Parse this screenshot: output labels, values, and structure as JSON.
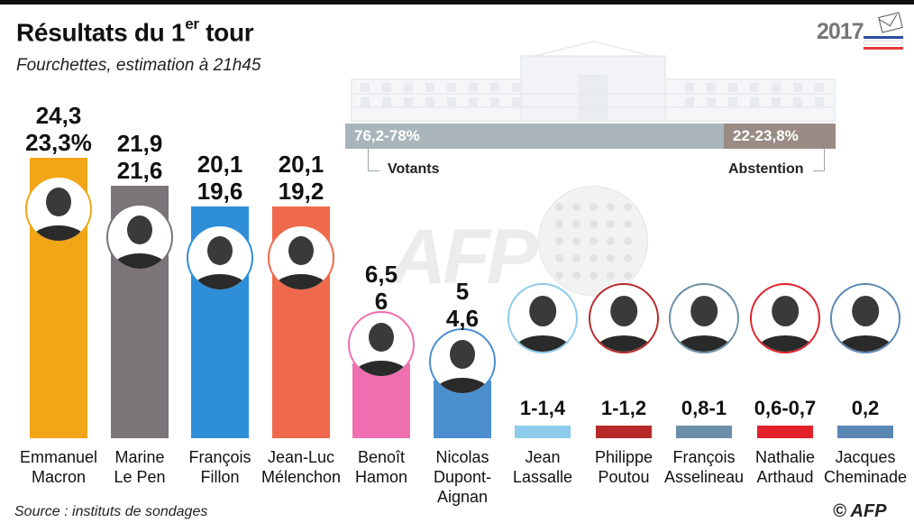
{
  "header": {
    "title_main": "Résultats du 1",
    "title_sup": "er",
    "title_end": " tour",
    "subtitle": "Fourchettes, estimation à 21h45",
    "year": "2017",
    "year_colors": [
      "#2b4fa0",
      "#ffffff",
      "#e23b3b"
    ]
  },
  "turnout": {
    "votants_value": "76,2-78%",
    "votants_label": "Votants",
    "abstention_value": "22-23,8%",
    "abstention_label": "Abstention",
    "votants_color": "#a9b4bb",
    "abstention_color": "#9a8b85",
    "votants_share": 0.772
  },
  "watermark": "AFP",
  "footer": {
    "source": "Source : instituts de sondages",
    "credit": "© AFP"
  },
  "chart_data": {
    "type": "bar",
    "title": "Résultats du 1er tour",
    "subtitle": "Fourchettes, estimation à 21h45",
    "categories": [
      "Emmanuel Macron",
      "Marine Le Pen",
      "François Fillon",
      "Jean-Luc Mélenchon",
      "Benoît Hamon",
      "Nicolas Dupont-Aignan",
      "Jean Lassalle",
      "Philippe Poutou",
      "François Asselineau",
      "Nathalie Arthaud",
      "Jacques Cheminade"
    ],
    "series": [
      {
        "values": [
          24.3,
          21.9,
          20.1,
          20.1,
          6.5,
          5,
          1.4,
          1.2,
          1,
          0.7,
          0.2
        ]
      },
      {
        "values": [
          23.3,
          21.6,
          19.6,
          19.2,
          6,
          4.6,
          1,
          1,
          0.8,
          0.6,
          0.2
        ]
      }
    ],
    "ylim": [
      0,
      24.3
    ],
    "grid": false,
    "candidates": [
      {
        "name_line1": "Emmanuel",
        "name_line2": "Macron",
        "name_line3": "",
        "label_top": "24,3",
        "label_bottom": "23,3%",
        "color": "#f2a516"
      },
      {
        "name_line1": "Marine",
        "name_line2": "Le Pen",
        "name_line3": "",
        "label_top": "21,9",
        "label_bottom": "21,6",
        "color": "#7b7478"
      },
      {
        "name_line1": "François",
        "name_line2": "Fillon",
        "name_line3": "",
        "label_top": "20,1",
        "label_bottom": "19,6",
        "color": "#2e8fd8"
      },
      {
        "name_line1": "Jean-Luc",
        "name_line2": "Mélenchon",
        "name_line3": "",
        "label_top": "20,1",
        "label_bottom": "19,2",
        "color": "#ef6a4c"
      },
      {
        "name_line1": "Benoît",
        "name_line2": "Hamon",
        "name_line3": "",
        "label_top": "6,5",
        "label_bottom": "6",
        "color": "#f06fb0"
      },
      {
        "name_line1": "Nicolas",
        "name_line2": "Dupont-",
        "name_line3": "Aignan",
        "label_top": "5",
        "label_bottom": "4,6",
        "color": "#4b8fcf"
      },
      {
        "name_line1": "Jean",
        "name_line2": "Lassalle",
        "name_line3": "",
        "label_top": "1-1,4",
        "label_bottom": "",
        "color": "#8ccbea"
      },
      {
        "name_line1": "Philippe",
        "name_line2": "Poutou",
        "name_line3": "",
        "label_top": "1-1,2",
        "label_bottom": "",
        "color": "#b72a2a"
      },
      {
        "name_line1": "François",
        "name_line2": "Asselineau",
        "name_line3": "",
        "label_top": "0,8-1",
        "label_bottom": "",
        "color": "#6b8fa6"
      },
      {
        "name_line1": "Nathalie",
        "name_line2": "Arthaud",
        "name_line3": "",
        "label_top": "0,6-0,7",
        "label_bottom": "",
        "color": "#e2212a"
      },
      {
        "name_line1": "Jacques",
        "name_line2": "Cheminade",
        "name_line3": "",
        "label_top": "0,2",
        "label_bottom": "",
        "color": "#5a87b3"
      }
    ]
  }
}
